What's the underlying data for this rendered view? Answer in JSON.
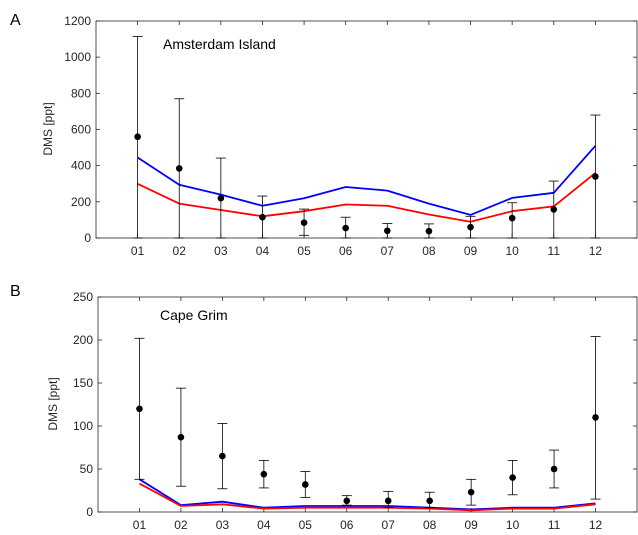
{
  "chart_data": [
    {
      "type": "line",
      "panel_label": "A",
      "title": "Amsterdam Island",
      "xlabel": "",
      "ylabel": "DMS [ppt]",
      "categories": [
        "01",
        "02",
        "03",
        "04",
        "05",
        "06",
        "07",
        "08",
        "09",
        "10",
        "11",
        "12"
      ],
      "ylim": [
        0,
        1200
      ],
      "yticks": [
        0,
        200,
        400,
        600,
        800,
        1000,
        1200
      ],
      "grid": false,
      "series": [
        {
          "color": "#0000ff",
          "values": [
            445,
            295,
            240,
            178,
            220,
            282,
            262,
            190,
            128,
            222,
            250,
            510
          ]
        },
        {
          "color": "#ff0000",
          "values": [
            300,
            190,
            155,
            120,
            148,
            185,
            178,
            130,
            90,
            148,
            175,
            360
          ]
        }
      ],
      "observations": {
        "color": "#000000",
        "values": [
          560,
          385,
          220,
          115,
          85,
          55,
          40,
          38,
          60,
          110,
          158,
          340
        ],
        "err_low": [
          0,
          0,
          0,
          0,
          15,
          0,
          0,
          0,
          0,
          0,
          0,
          0
        ],
        "err_high": [
          1115,
          770,
          442,
          232,
          160,
          115,
          80,
          78,
          120,
          195,
          315,
          680
        ]
      }
    },
    {
      "type": "line",
      "panel_label": "B",
      "title": "Cape Grim",
      "xlabel": "",
      "ylabel": "DMS [ppt]",
      "categories": [
        "01",
        "02",
        "03",
        "04",
        "05",
        "06",
        "07",
        "08",
        "09",
        "10",
        "11",
        "12"
      ],
      "ylim": [
        0,
        250
      ],
      "yticks": [
        0,
        50,
        100,
        150,
        200,
        250
      ],
      "grid": false,
      "series": [
        {
          "color": "#0000ff",
          "values": [
            38,
            8,
            12,
            5,
            7,
            7,
            7,
            5,
            3,
            5,
            5,
            10
          ]
        },
        {
          "color": "#ff0000",
          "values": [
            33,
            7,
            9,
            4,
            5,
            5,
            5,
            4,
            2,
            4,
            4,
            9
          ]
        }
      ],
      "observations": {
        "color": "#000000",
        "values": [
          120,
          87,
          65,
          44,
          32,
          13,
          13,
          13,
          23,
          40,
          50,
          110
        ],
        "err_low": [
          38,
          30,
          27,
          28,
          17,
          8,
          5,
          5,
          8,
          20,
          28,
          15
        ],
        "err_high": [
          202,
          144,
          103,
          60,
          47,
          19,
          24,
          23,
          38,
          60,
          72,
          204
        ]
      }
    }
  ]
}
